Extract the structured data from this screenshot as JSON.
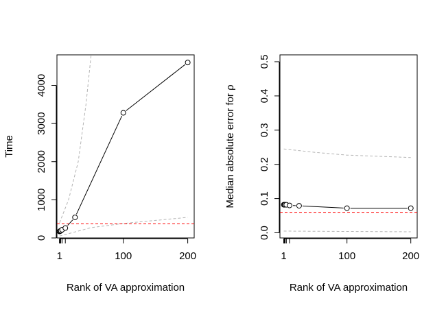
{
  "chart_data": [
    {
      "type": "line",
      "xlabel": "Rank of VA approximation",
      "ylabel": "Time",
      "xlim": [
        -3,
        210
      ],
      "ylim": [
        0,
        4800
      ],
      "xticks": [
        1,
        100,
        200
      ],
      "xminorticks": [
        1,
        2,
        3,
        5,
        10
      ],
      "yticks": [
        0,
        1000,
        2000,
        3000,
        4000
      ],
      "grid": false,
      "series": [
        {
          "points": [
            [
              1,
              170
            ],
            [
              2,
              180
            ],
            [
              3,
              190
            ],
            [
              5,
              215
            ],
            [
              10,
              260
            ],
            [
              25,
              540
            ],
            [
              100,
              3280
            ],
            [
              200,
              4600
            ]
          ]
        }
      ],
      "reference_line": {
        "y": 370,
        "color": "#ff0000"
      },
      "band_upper": [
        [
          1,
          400
        ],
        [
          15,
          1000
        ],
        [
          30,
          2000
        ],
        [
          42,
          3500
        ],
        [
          50,
          4800
        ]
      ],
      "band_lower": [
        [
          1,
          50
        ],
        [
          50,
          270
        ],
        [
          100,
          380
        ],
        [
          150,
          460
        ],
        [
          200,
          540
        ]
      ]
    },
    {
      "type": "line",
      "xlabel": "Rank of VA approximation",
      "ylabel": "Median absolute error for ρ",
      "xlim": [
        -5,
        210
      ],
      "ylim": [
        -0.015,
        0.52
      ],
      "xticks": [
        1,
        100,
        200
      ],
      "xminorticks": [
        1,
        2,
        3,
        5,
        10
      ],
      "yticks": [
        0.0,
        0.1,
        0.2,
        0.3,
        0.4,
        0.5
      ],
      "grid": false,
      "series": [
        {
          "points": [
            [
              1,
              0.082
            ],
            [
              2,
              0.082
            ],
            [
              3,
              0.082
            ],
            [
              5,
              0.082
            ],
            [
              10,
              0.08
            ],
            [
              25,
              0.079
            ],
            [
              100,
              0.072
            ],
            [
              200,
              0.072
            ]
          ]
        }
      ],
      "reference_line": {
        "y": 0.06,
        "color": "#ff0000"
      },
      "band_upper": [
        [
          1,
          0.245
        ],
        [
          50,
          0.235
        ],
        [
          100,
          0.227
        ],
        [
          200,
          0.22
        ]
      ],
      "band_lower": [
        [
          1,
          0.005
        ],
        [
          100,
          0.004
        ],
        [
          200,
          0.003
        ]
      ]
    }
  ]
}
